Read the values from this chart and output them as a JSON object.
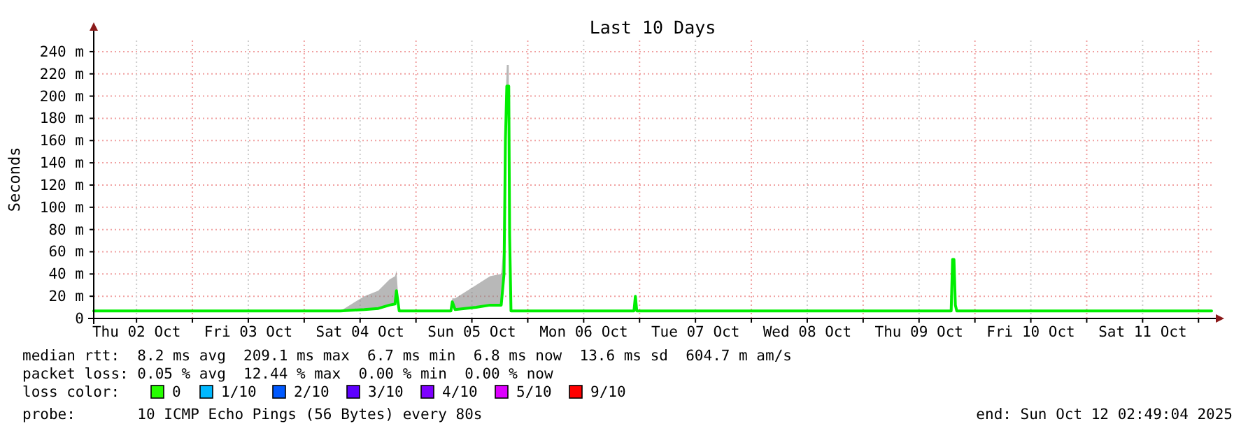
{
  "chart_data": {
    "type": "line",
    "title": "Last 10 Days",
    "ylabel": "Seconds",
    "x": [
      "2025-10-02T02:49",
      "2025-10-04T07:48",
      "2025-10-04T12:54",
      "2025-10-04T15:54",
      "2025-10-04T18:18",
      "2025-10-04T19:30",
      "2025-10-04T19:48",
      "2025-10-04T20:24",
      "2025-10-05T07:30",
      "2025-10-05T07:48",
      "2025-10-05T08:24",
      "2025-10-05T12:54",
      "2025-10-05T15:54",
      "2025-10-05T18:18",
      "2025-10-05T18:54",
      "2025-10-05T19:12",
      "2025-10-05T19:30",
      "2025-10-05T19:55",
      "2025-10-05T20:06",
      "2025-10-05T20:24",
      "2025-10-06T22:48",
      "2025-10-06T23:06",
      "2025-10-06T23:24",
      "2025-10-09T18:54",
      "2025-10-09T19:12",
      "2025-10-09T19:30",
      "2025-10-09T19:48",
      "2025-10-09T20:06",
      "2025-10-12T02:49"
    ],
    "series": [
      {
        "color": "#00ee00",
        "values": [
          6.8,
          6.8,
          8,
          9,
          12,
          13,
          25,
          6.8,
          6.8,
          15,
          8,
          10,
          12,
          12,
          40,
          160,
          209,
          209,
          75,
          6.8,
          6.8,
          20,
          6.8,
          6.8,
          53,
          53,
          12,
          6.8,
          6.8
        ],
        "lower": [
          6.8,
          6.8,
          8,
          9,
          12,
          13,
          25,
          6.8,
          6.8,
          15,
          8,
          10,
          12,
          12,
          40,
          160,
          209,
          209,
          75,
          6.8,
          6.8,
          20,
          6.8,
          6.8,
          53,
          53,
          12,
          6.8,
          6.8
        ],
        "upper": [
          6.8,
          6.8,
          20,
          25,
          35,
          38,
          43,
          6.8,
          6.8,
          18,
          18,
          30,
          38,
          40,
          70,
          190,
          228,
          228,
          85,
          6.8,
          6.8,
          20,
          6.8,
          6.8,
          53,
          53,
          12,
          6.8,
          6.8
        ]
      }
    ],
    "xlim": [
      "2025-10-02T02:49",
      "2025-10-12T02:49"
    ],
    "xticks": [
      {
        "value": "2025-10-02T12:00",
        "label": "Thu 02 Oct"
      },
      {
        "value": "2025-10-03T00:00",
        "label": null
      },
      {
        "value": "2025-10-03T12:00",
        "label": "Fri 03 Oct"
      },
      {
        "value": "2025-10-04T00:00",
        "label": null
      },
      {
        "value": "2025-10-04T12:00",
        "label": "Sat 04 Oct"
      },
      {
        "value": "2025-10-05T00:00",
        "label": null
      },
      {
        "value": "2025-10-05T12:00",
        "label": "Sun 05 Oct"
      },
      {
        "value": "2025-10-06T00:00",
        "label": null
      },
      {
        "value": "2025-10-06T12:00",
        "label": "Mon 06 Oct"
      },
      {
        "value": "2025-10-07T00:00",
        "label": null
      },
      {
        "value": "2025-10-07T12:00",
        "label": "Tue 07 Oct"
      },
      {
        "value": "2025-10-08T00:00",
        "label": null
      },
      {
        "value": "2025-10-08T12:00",
        "label": "Wed 08 Oct"
      },
      {
        "value": "2025-10-09T00:00",
        "label": null
      },
      {
        "value": "2025-10-09T12:00",
        "label": "Thu 09 Oct"
      },
      {
        "value": "2025-10-10T00:00",
        "label": null
      },
      {
        "value": "2025-10-10T12:00",
        "label": "Fri 10 Oct"
      },
      {
        "value": "2025-10-11T00:00",
        "label": null
      },
      {
        "value": "2025-10-11T12:00",
        "label": "Sat 11 Oct"
      },
      {
        "value": "2025-10-12T00:00",
        "label": null
      }
    ],
    "ylim": [
      0,
      250
    ],
    "yticks": [
      0,
      {
        "value": 20,
        "label": "20 m"
      },
      {
        "value": 40,
        "label": "40 m"
      },
      {
        "value": 60,
        "label": "60 m"
      },
      {
        "value": 80,
        "label": "80 m"
      },
      {
        "value": 100,
        "label": "100 m"
      },
      {
        "value": 120,
        "label": "120 m"
      },
      {
        "value": 140,
        "label": "140 m"
      },
      {
        "value": 160,
        "label": "160 m"
      },
      {
        "value": 180,
        "label": "180 m"
      },
      {
        "value": 200,
        "label": "200 m"
      },
      {
        "value": 220,
        "label": "220 m"
      },
      {
        "value": 240,
        "label": "240 m"
      }
    ],
    "grid": true,
    "marker": "none",
    "line_style": "solid",
    "annotations": [
      "median rtt:  8.2 ms avg  209.1 ms max  6.7 ms min  6.8 ms now  13.6 ms sd  604.7 m am/s",
      "packet loss: 0.05 % avg  12.44 % max  0.00 % min  0.00 % now",
      "loss color:",
      "0",
      "1/10",
      "2/10",
      "3/10",
      "4/10",
      "5/10",
      "9/10",
      "probe:       10 ICMP Echo Pings (56 Bytes) every 80s",
      "end: Sun Oct 12 02:49:04 2025"
    ]
  }
}
